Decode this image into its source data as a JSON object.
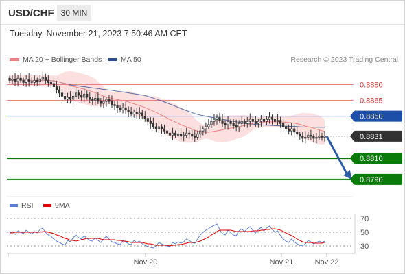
{
  "header": {
    "symbol": "USD/CHF",
    "timeframe": "30 MIN"
  },
  "datetime": "Tuesday, November 21, 2023 7:50:46 AM CET",
  "copyright": "Research © 2023 Trading Central",
  "legend": {
    "main": [
      {
        "label": "MA 20 + Bollinger Bands",
        "color": "#f08080"
      },
      {
        "label": "MA 50",
        "color": "#2a4f8f"
      }
    ],
    "sub": [
      {
        "label": "RSI",
        "color": "#5b7fd6"
      },
      {
        "label": "9MA",
        "color": "#e00000"
      }
    ]
  },
  "colors": {
    "up": "#ffffff",
    "down": "#333333",
    "bb_fill": "#fbdada",
    "support": "#0a7a0a",
    "resistance": "#f08080",
    "pivot": "#1e4fa8",
    "current": "#333333",
    "arrow": "#2a5aa8"
  },
  "chart_data": [
    {
      "type": "candlestick",
      "title": "USD/CHF",
      "ylim": [
        0.8775,
        0.8892
      ],
      "x_ticks": [
        "Nov 20",
        "Nov 21",
        "Nov 22"
      ],
      "levels": [
        {
          "label": "0.8880",
          "value": 0.888,
          "kind": "resistance"
        },
        {
          "label": "0.8865",
          "value": 0.8865,
          "kind": "resistance"
        },
        {
          "label": "0.8850",
          "value": 0.885,
          "kind": "pivot"
        },
        {
          "label": "0.8831",
          "value": 0.8831,
          "kind": "current"
        },
        {
          "label": "0.8810",
          "value": 0.881,
          "kind": "support"
        },
        {
          "label": "0.8790",
          "value": 0.879,
          "kind": "support"
        }
      ],
      "forecast_arrow": {
        "from": 0.8831,
        "to": 0.879,
        "direction": "down"
      },
      "close": [
        0.8884,
        0.8885,
        0.8883,
        0.8886,
        0.8884,
        0.8882,
        0.8885,
        0.8883,
        0.8882,
        0.8884,
        0.8883,
        0.8885,
        0.8887,
        0.8884,
        0.8882,
        0.8881,
        0.8878,
        0.8875,
        0.8872,
        0.8869,
        0.8866,
        0.8868,
        0.8866,
        0.8869,
        0.8872,
        0.887,
        0.8868,
        0.8871,
        0.8868,
        0.8866,
        0.8865,
        0.8867,
        0.8864,
        0.8862,
        0.8864,
        0.8866,
        0.8864,
        0.8861,
        0.886,
        0.8858,
        0.8856,
        0.8858,
        0.8856,
        0.8854,
        0.8852,
        0.8854,
        0.8852,
        0.8853,
        0.885,
        0.8848,
        0.8845,
        0.8843,
        0.884,
        0.8838,
        0.884,
        0.8838,
        0.8836,
        0.8834,
        0.8832,
        0.8834,
        0.8832,
        0.8833,
        0.8831,
        0.8832,
        0.8834,
        0.8833,
        0.8831,
        0.883,
        0.8833,
        0.8836,
        0.8838,
        0.884,
        0.8842,
        0.8845,
        0.8847,
        0.8849,
        0.8846,
        0.8843,
        0.8842,
        0.8845,
        0.8843,
        0.8841,
        0.884,
        0.8843,
        0.8845,
        0.8843,
        0.8845,
        0.8847,
        0.8845,
        0.8843,
        0.8845,
        0.8847,
        0.8845,
        0.8847,
        0.8849,
        0.8847,
        0.8845,
        0.8846,
        0.8843,
        0.884,
        0.8838,
        0.8836,
        0.8838,
        0.8835,
        0.8833,
        0.8831,
        0.8829,
        0.883,
        0.8832,
        0.8831,
        0.8829,
        0.883,
        0.8831,
        0.883,
        0.8831
      ]
    },
    {
      "type": "line",
      "title": "RSI",
      "ylim": [
        25,
        75
      ],
      "y_ticks": [
        70,
        50,
        30
      ],
      "series": [
        {
          "name": "RSI",
          "values": [
            49,
            51,
            47,
            52,
            50,
            48,
            53,
            50,
            47,
            51,
            49,
            54,
            56,
            50,
            46,
            44,
            40,
            37,
            35,
            33,
            31,
            38,
            36,
            42,
            46,
            42,
            40,
            45,
            41,
            38,
            37,
            42,
            38,
            35,
            40,
            44,
            40,
            36,
            35,
            33,
            32,
            38,
            36,
            33,
            32,
            38,
            35,
            37,
            33,
            31,
            29,
            28,
            27,
            30,
            35,
            33,
            31,
            30,
            29,
            35,
            33,
            36,
            34,
            36,
            40,
            38,
            35,
            34,
            40,
            46,
            50,
            53,
            55,
            58,
            60,
            62,
            54,
            48,
            46,
            53,
            49,
            46,
            45,
            52,
            55,
            51,
            55,
            58,
            53,
            49,
            54,
            57,
            52,
            56,
            59,
            54,
            50,
            52,
            45,
            40,
            37,
            35,
            40,
            36,
            33,
            31,
            30,
            33,
            38,
            36,
            33,
            35,
            37,
            35,
            37
          ]
        },
        {
          "name": "9MA",
          "values": [
            49,
            49,
            50,
            50,
            50,
            50,
            50,
            50,
            50,
            50,
            50,
            50,
            51,
            51,
            50,
            49,
            48,
            46,
            45,
            43,
            41,
            40,
            38,
            38,
            37,
            38,
            39,
            40,
            41,
            41,
            41,
            41,
            41,
            40,
            39,
            39,
            39,
            39,
            39,
            38,
            38,
            37,
            37,
            36,
            35,
            35,
            35,
            35,
            35,
            34,
            33,
            33,
            32,
            31,
            31,
            31,
            31,
            31,
            30,
            31,
            31,
            32,
            32,
            33,
            34,
            35,
            35,
            35,
            36,
            37,
            39,
            41,
            43,
            46,
            48,
            51,
            53,
            53,
            53,
            53,
            53,
            52,
            51,
            51,
            51,
            51,
            51,
            51,
            52,
            52,
            52,
            53,
            53,
            54,
            54,
            55,
            55,
            54,
            53,
            51,
            49,
            47,
            45,
            43,
            40,
            38,
            36,
            35,
            35,
            35,
            34,
            34,
            34,
            34,
            35
          ]
        }
      ]
    }
  ]
}
